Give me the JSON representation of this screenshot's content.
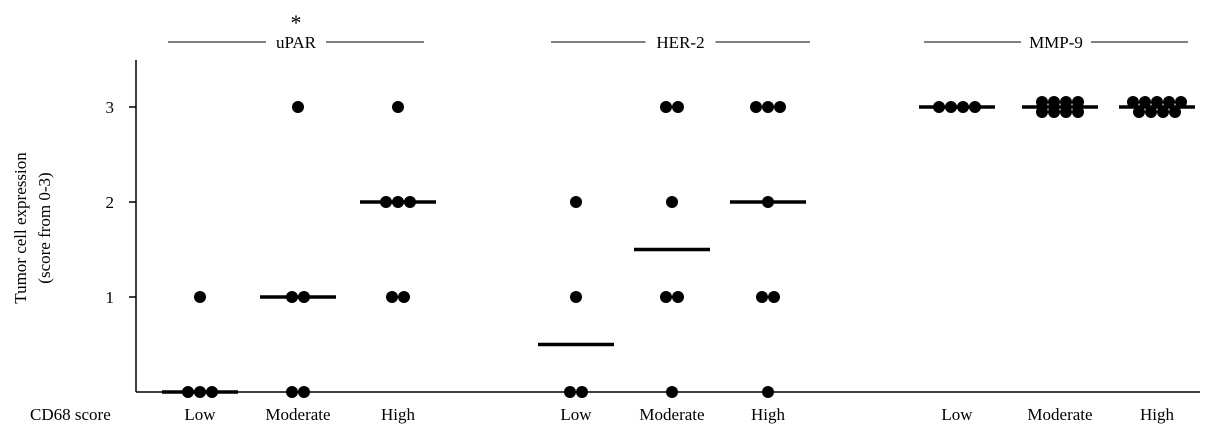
{
  "chart_data": {
    "type": "scatter",
    "ylabel_lines": [
      "Tumor cell expression",
      "(score from 0-3)"
    ],
    "x_axis_title": "CD68 score",
    "yticks": [
      1,
      2,
      3
    ],
    "ylim": [
      0,
      3.5
    ],
    "grid": false,
    "groups": [
      {
        "name": "uPAR",
        "annotation": "*",
        "categories": [
          {
            "label": "Low",
            "points": [
              0,
              0,
              0,
              1
            ],
            "median": 0
          },
          {
            "label": "Moderate",
            "points": [
              0,
              0,
              1,
              1,
              3
            ],
            "median": 1
          },
          {
            "label": "High",
            "points": [
              1,
              1,
              2,
              2,
              2,
              3
            ],
            "median": 2
          }
        ]
      },
      {
        "name": "HER-2",
        "annotation": "",
        "categories": [
          {
            "label": "Low",
            "points": [
              0,
              0,
              1,
              2
            ],
            "median": 0.5
          },
          {
            "label": "Moderate",
            "points": [
              0,
              1,
              1,
              2,
              3,
              3
            ],
            "median": 1.5
          },
          {
            "label": "High",
            "points": [
              0,
              1,
              1,
              2,
              3,
              3,
              3
            ],
            "median": 2
          }
        ]
      },
      {
        "name": "MMP-9",
        "annotation": "",
        "categories": [
          {
            "label": "Low",
            "points": [
              3,
              3,
              3,
              3
            ],
            "median": 3
          },
          {
            "label": "Moderate",
            "points": [
              3,
              3,
              3,
              3,
              3,
              3,
              3,
              3
            ],
            "median": 3
          },
          {
            "label": "High",
            "points": [
              3,
              3,
              3,
              3,
              3,
              3,
              3,
              3,
              3
            ],
            "median": 3
          }
        ]
      }
    ]
  }
}
